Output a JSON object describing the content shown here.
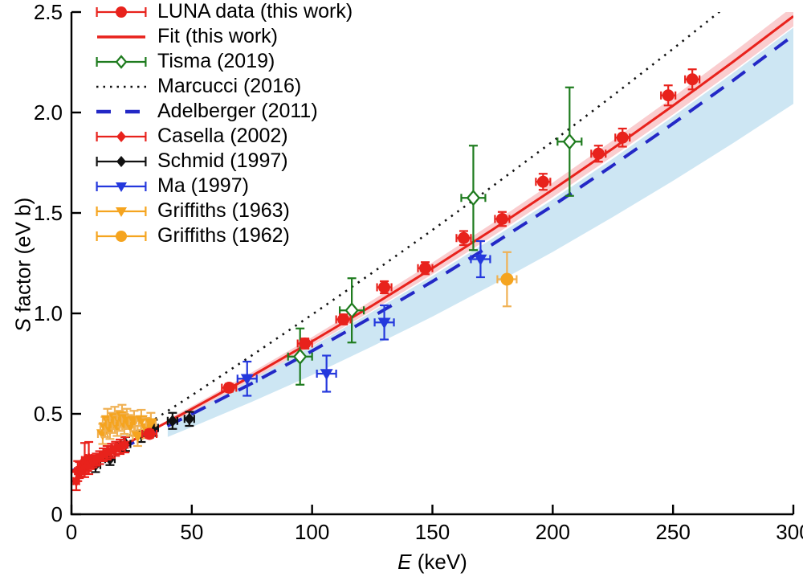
{
  "chart_data": {
    "type": "scatter",
    "title": "",
    "xlabel_italic": "E",
    "xlabel_rest": " (keV)",
    "ylabel_italic": "S",
    "ylabel_rest": " factor (eV b)",
    "xlim": [
      0,
      300
    ],
    "ylim": [
      0,
      2.5
    ],
    "grid": false,
    "legend_position": "top-left",
    "xticks": [
      {
        "v": 0,
        "label": "0"
      },
      {
        "v": 50,
        "label": "50"
      },
      {
        "v": 100,
        "label": "100"
      },
      {
        "v": 150,
        "label": "150"
      },
      {
        "v": 200,
        "label": "200"
      },
      {
        "v": 250,
        "label": "250"
      },
      {
        "v": 300,
        "label": "300"
      }
    ],
    "yticks": [
      {
        "v": 0,
        "label": "0"
      },
      {
        "v": 0.5,
        "label": "0.5"
      },
      {
        "v": 1,
        "label": "1.0"
      },
      {
        "v": 1.5,
        "label": "1.5"
      },
      {
        "v": 2,
        "label": "2.0"
      },
      {
        "v": 2.5,
        "label": "2.5"
      }
    ],
    "colors": {
      "red": "#e8221c",
      "pink_band": "#facdcf",
      "blue_band": "#cde6f3",
      "navy": "#2328c6",
      "ma_blue": "#2438dd",
      "green": "#1e7b1e",
      "orange": "#f5a41f",
      "orange_bar": "#f0b153",
      "black": "#111111"
    },
    "E_grid": [
      0,
      25,
      50,
      75,
      100,
      125,
      150,
      175,
      200,
      225,
      250,
      275,
      300
    ],
    "bands": [
      {
        "key": "adelberger-uncertainty",
        "color": "blue_band",
        "E": [
          40,
          50,
          75,
          100,
          125,
          150,
          175,
          200,
          225,
          250,
          275,
          300
        ],
        "top": [
          0.457,
          0.518,
          0.673,
          0.836,
          1.008,
          1.186,
          1.373,
          1.567,
          1.77,
          1.98,
          2.197,
          2.422
        ],
        "bottom": [
          0.385,
          0.434,
          0.56,
          0.693,
          0.836,
          0.984,
          1.142,
          1.306,
          1.48,
          1.66,
          1.848,
          2.043
        ]
      },
      {
        "key": "fit-uncertainty",
        "color": "pink_band",
        "E": [
          40,
          50,
          75,
          100,
          125,
          150,
          175,
          200,
          225,
          250,
          275,
          300
        ],
        "top": [
          0.473,
          0.538,
          0.707,
          0.882,
          1.065,
          1.253,
          1.449,
          1.651,
          1.861,
          2.076,
          2.299,
          2.529
        ],
        "bottom": [
          0.446,
          0.509,
          0.67,
          0.839,
          1.014,
          1.195,
          1.384,
          1.579,
          1.782,
          1.99,
          2.206,
          2.429
        ]
      }
    ],
    "lines": [
      {
        "key": "marcucci",
        "label": "Marcucci (2016)",
        "color": "black",
        "width": 2.6,
        "dash": "2.5 7",
        "S": [
          0.21,
          0.399,
          0.592,
          0.791,
          0.994,
          1.202,
          1.415,
          1.633,
          1.856,
          2.084,
          2.317,
          2.556,
          2.8
        ]
      },
      {
        "key": "adelberger",
        "label": "Adelberger (2011)",
        "color": "navy",
        "width": 4,
        "dash": "20 13",
        "S": [
          0.215,
          0.353,
          0.499,
          0.652,
          0.813,
          0.983,
          1.159,
          1.344,
          1.536,
          1.737,
          1.945,
          2.16,
          2.384
        ]
      },
      {
        "key": "fit",
        "label": "Fit (this work)",
        "color": "red",
        "width": 3,
        "dash": null,
        "S": [
          0.214,
          0.365,
          0.524,
          0.689,
          0.861,
          1.039,
          1.225,
          1.417,
          1.616,
          1.821,
          2.034,
          2.253,
          2.479
        ]
      }
    ],
    "series": [
      {
        "key": "schmid",
        "label": "Schmid (1997)",
        "marker": "diamond",
        "size": 7.5,
        "color": "black",
        "bar_color": "black",
        "xerr": 2,
        "points": [
          [
            10,
            0.245,
            0.035
          ],
          [
            16,
            0.275,
            0.03
          ],
          [
            22.5,
            0.35,
            0.035
          ],
          [
            29,
            0.4,
            0.04
          ],
          [
            34,
            0.43,
            0.04
          ],
          [
            42,
            0.465,
            0.04
          ],
          [
            49,
            0.475,
            0.035
          ]
        ]
      },
      {
        "key": "casella",
        "label": "Casella (2002)",
        "marker": "diamond",
        "size": 7,
        "color": "red",
        "bar_color": "red",
        "xerr": 1.2,
        "points": [
          [
            2,
            0.165,
            0.045
          ],
          [
            2.6,
            0.215,
            0.05
          ],
          [
            3.3,
            0.22,
            0.04
          ],
          [
            4,
            0.225,
            0.035
          ],
          [
            4.8,
            0.232,
            0.032
          ],
          [
            5.5,
            0.27,
            0.085
          ],
          [
            5.7,
            0.237,
            0.03
          ],
          [
            6.7,
            0.246,
            0.03
          ],
          [
            7.2,
            0.28,
            0.08
          ],
          [
            7.8,
            0.255,
            0.03
          ],
          [
            9,
            0.263,
            0.03
          ],
          [
            10.3,
            0.272,
            0.03
          ],
          [
            11.7,
            0.282,
            0.032
          ],
          [
            13.2,
            0.296,
            0.032
          ],
          [
            14.8,
            0.306,
            0.034
          ],
          [
            16.5,
            0.316,
            0.035
          ],
          [
            18.3,
            0.326,
            0.035
          ],
          [
            20.2,
            0.336,
            0.036
          ],
          [
            22.2,
            0.346,
            0.038
          ]
        ]
      },
      {
        "key": "griffiths63",
        "label": "Griffiths (1963)",
        "marker": "triangle-down",
        "size": 8,
        "color": "orange",
        "bar_color": "orange_bar",
        "xerr": 2,
        "points": [
          [
            13,
            0.4,
            0.05
          ],
          [
            14,
            0.435,
            0.05
          ],
          [
            15,
            0.47,
            0.055
          ],
          [
            16,
            0.425,
            0.05
          ],
          [
            17,
            0.455,
            0.05
          ],
          [
            18,
            0.48,
            0.055
          ],
          [
            19,
            0.44,
            0.05
          ],
          [
            20,
            0.465,
            0.05
          ],
          [
            21,
            0.49,
            0.055
          ],
          [
            22,
            0.45,
            0.05
          ],
          [
            23,
            0.475,
            0.05
          ],
          [
            24.5,
            0.44,
            0.05
          ],
          [
            26,
            0.465,
            0.05
          ],
          [
            27.5,
            0.39,
            0.05
          ],
          [
            29,
            0.47,
            0.05
          ],
          [
            31,
            0.43,
            0.05
          ],
          [
            33,
            0.455,
            0.05
          ]
        ]
      },
      {
        "key": "griffiths62",
        "label": "Griffiths (1962)",
        "marker": "circle",
        "size": 8,
        "color": "orange",
        "bar_color": "orange_bar",
        "xerr": 4,
        "points": [
          [
            181,
            1.17,
            0.135
          ]
        ]
      },
      {
        "key": "tisma",
        "label": "Tisma (2019)",
        "marker": "diamond-open",
        "size": 8.5,
        "color": "green",
        "bar_color": "green",
        "xerr": 5,
        "points": [
          [
            95,
            0.785,
            0.14
          ],
          [
            116.5,
            1.015,
            0.16
          ],
          [
            167,
            1.575,
            0.26
          ],
          [
            207,
            1.855,
            0.27
          ]
        ]
      },
      {
        "key": "ma",
        "label": "Ma (1997)",
        "marker": "triangle-down",
        "size": 8,
        "color": "ma_blue",
        "bar_color": "ma_blue",
        "xerr": 4,
        "points": [
          [
            73,
            0.675,
            0.085
          ],
          [
            106,
            0.7,
            0.09
          ],
          [
            130,
            0.955,
            0.085
          ],
          [
            170,
            1.27,
            0.09
          ]
        ]
      },
      {
        "key": "luna",
        "label": "LUNA data (this work)",
        "marker": "circle",
        "size": 7.5,
        "color": "red",
        "bar_color": "red",
        "xerr": 3,
        "points": [
          [
            32.4,
            0.4,
            0.02
          ],
          [
            65.5,
            0.63,
            0.02
          ],
          [
            97,
            0.85,
            0.025
          ],
          [
            113,
            0.97,
            0.025
          ],
          [
            130,
            1.13,
            0.03
          ],
          [
            147,
            1.225,
            0.03
          ],
          [
            163,
            1.375,
            0.035
          ],
          [
            179,
            1.47,
            0.035
          ],
          [
            196,
            1.655,
            0.04
          ],
          [
            219,
            1.795,
            0.04
          ],
          [
            229,
            1.875,
            0.045
          ],
          [
            248,
            2.085,
            0.05
          ],
          [
            258,
            2.165,
            0.05
          ]
        ]
      }
    ],
    "legend": {
      "items": [
        {
          "label": "LUNA data (this work)",
          "swatch": "errbar",
          "marker": "circle",
          "color": "red"
        },
        {
          "label": "Fit (this work)",
          "swatch": "line",
          "marker": null,
          "color": "red"
        },
        {
          "label": "Tisma (2019)",
          "swatch": "errbar",
          "marker": "diamond-open",
          "color": "green"
        },
        {
          "label": "Marcucci (2016)",
          "swatch": "line-dotted",
          "marker": null,
          "color": "black"
        },
        {
          "label": "Adelberger (2011)",
          "swatch": "line-dashed",
          "marker": null,
          "color": "navy"
        },
        {
          "label": "Casella (2002)",
          "swatch": "errbar",
          "marker": "diamond",
          "color": "red"
        },
        {
          "label": "Schmid (1997)",
          "swatch": "errbar",
          "marker": "diamond",
          "color": "black"
        },
        {
          "label": "Ma (1997)",
          "swatch": "errbar",
          "marker": "triangle-down",
          "color": "ma_blue"
        },
        {
          "label": "Griffiths (1963)",
          "swatch": "errbar",
          "marker": "triangle-down",
          "color": "orange"
        },
        {
          "label": "Griffiths (1962)",
          "swatch": "errbar",
          "marker": "circle",
          "color": "orange"
        }
      ]
    }
  }
}
